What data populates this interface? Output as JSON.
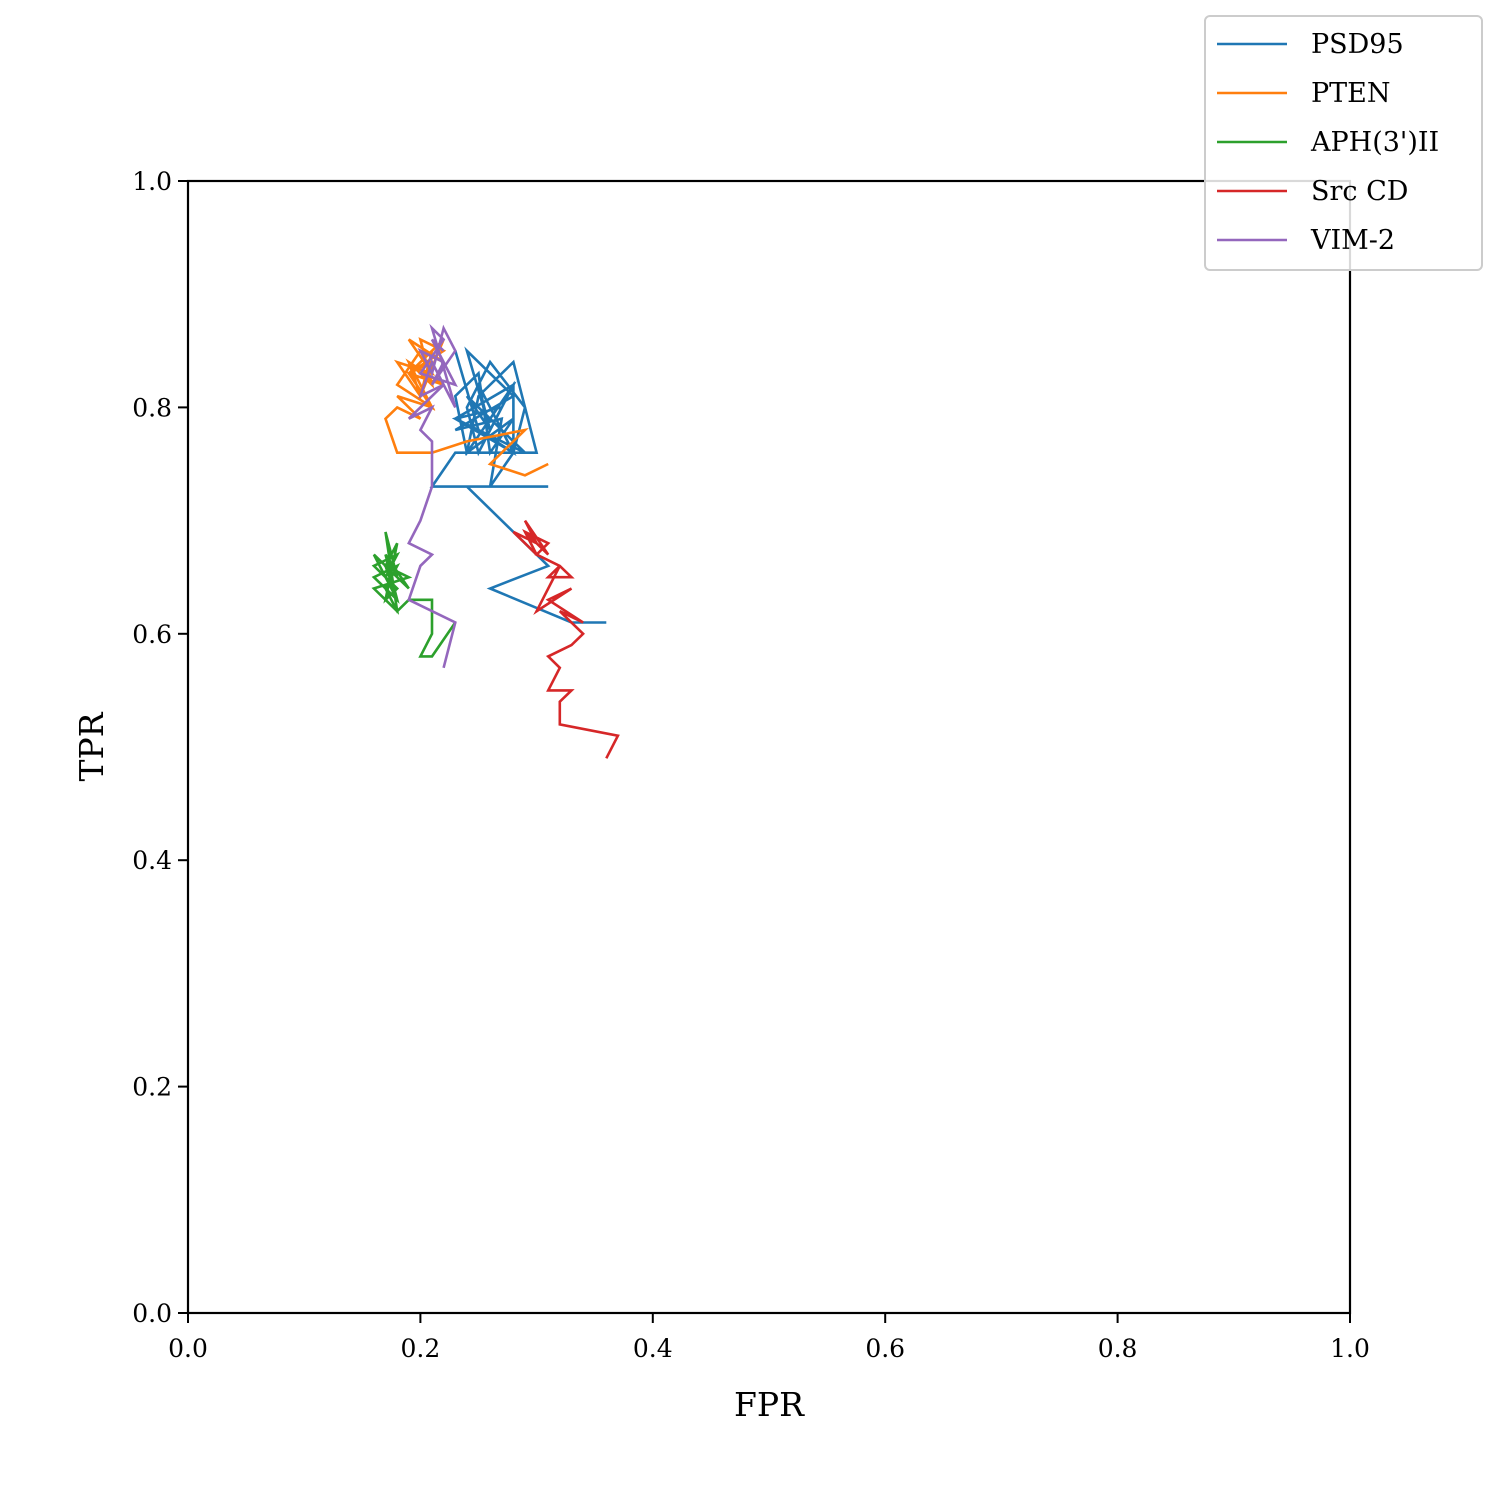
{
  "chart_data": {
    "type": "line",
    "xlabel": "FPR",
    "ylabel": "TPR",
    "xlim": [
      0.0,
      1.0
    ],
    "ylim": [
      0.0,
      1.0
    ],
    "xticks": [
      "0.0",
      "0.2",
      "0.4",
      "0.6",
      "0.8",
      "1.0"
    ],
    "yticks": [
      "0.0",
      "0.2",
      "0.4",
      "0.6",
      "0.8",
      "1.0"
    ],
    "grid": false,
    "legend_position": "top-right",
    "series": [
      {
        "name": "PSD95",
        "color": "#1f77b4",
        "x": [
          0.36,
          0.33,
          0.26,
          0.31,
          0.24,
          0.31,
          0.21,
          0.23,
          0.3,
          0.28,
          0.25,
          0.24,
          0.28,
          0.26,
          0.25,
          0.23,
          0.24,
          0.28,
          0.28,
          0.26,
          0.27,
          0.23,
          0.28,
          0.24,
          0.26,
          0.27,
          0.23,
          0.28,
          0.25,
          0.26,
          0.24,
          0.29,
          0.23,
          0.28,
          0.25,
          0.24,
          0.26,
          0.29,
          0.28,
          0.25,
          0.23
        ],
        "y": [
          0.61,
          0.61,
          0.64,
          0.66,
          0.73,
          0.73,
          0.73,
          0.76,
          0.76,
          0.84,
          0.81,
          0.76,
          0.79,
          0.76,
          0.83,
          0.81,
          0.76,
          0.82,
          0.76,
          0.73,
          0.79,
          0.78,
          0.81,
          0.85,
          0.78,
          0.8,
          0.79,
          0.76,
          0.82,
          0.78,
          0.81,
          0.76,
          0.79,
          0.82,
          0.76,
          0.8,
          0.84,
          0.8,
          0.76,
          0.78,
          0.85
        ]
      },
      {
        "name": "PTEN",
        "color": "#ff7f0e",
        "x": [
          0.31,
          0.29,
          0.26,
          0.29,
          0.24,
          0.21,
          0.18,
          0.17,
          0.18,
          0.2,
          0.18,
          0.21,
          0.19,
          0.22,
          0.19,
          0.21,
          0.18,
          0.2,
          0.22,
          0.19,
          0.21,
          0.18,
          0.2,
          0.21,
          0.19,
          0.22,
          0.2,
          0.19,
          0.21,
          0.2,
          0.22,
          0.19,
          0.21
        ],
        "y": [
          0.75,
          0.74,
          0.75,
          0.78,
          0.77,
          0.76,
          0.76,
          0.79,
          0.8,
          0.79,
          0.81,
          0.8,
          0.83,
          0.82,
          0.84,
          0.8,
          0.82,
          0.85,
          0.84,
          0.86,
          0.83,
          0.84,
          0.81,
          0.85,
          0.83,
          0.86,
          0.81,
          0.84,
          0.82,
          0.86,
          0.85,
          0.83,
          0.84
        ]
      },
      {
        "name": "APH(3')II",
        "color": "#2ca02c",
        "x": [
          0.23,
          0.21,
          0.2,
          0.21,
          0.21,
          0.19,
          0.18,
          0.17,
          0.18,
          0.16,
          0.18,
          0.17,
          0.19,
          0.17,
          0.18,
          0.16,
          0.18,
          0.17,
          0.18,
          0.16,
          0.19,
          0.17,
          0.18,
          0.17,
          0.18,
          0.16,
          0.18,
          0.17
        ],
        "y": [
          0.61,
          0.58,
          0.58,
          0.6,
          0.63,
          0.63,
          0.62,
          0.64,
          0.66,
          0.65,
          0.63,
          0.67,
          0.64,
          0.66,
          0.63,
          0.67,
          0.65,
          0.69,
          0.62,
          0.64,
          0.65,
          0.66,
          0.68,
          0.63,
          0.64,
          0.66,
          0.67,
          0.65
        ]
      },
      {
        "name": "Src CD",
        "color": "#d62728",
        "x": [
          0.36,
          0.37,
          0.32,
          0.32,
          0.33,
          0.31,
          0.32,
          0.31,
          0.33,
          0.34,
          0.32,
          0.34,
          0.31,
          0.33,
          0.3,
          0.32,
          0.31,
          0.33,
          0.32,
          0.3,
          0.31,
          0.29,
          0.3,
          0.28,
          0.3,
          0.29,
          0.31,
          0.29
        ],
        "y": [
          0.49,
          0.51,
          0.52,
          0.54,
          0.55,
          0.55,
          0.57,
          0.58,
          0.59,
          0.6,
          0.62,
          0.61,
          0.63,
          0.64,
          0.62,
          0.66,
          0.65,
          0.65,
          0.66,
          0.67,
          0.68,
          0.69,
          0.67,
          0.69,
          0.68,
          0.7,
          0.67,
          0.69
        ]
      },
      {
        "name": "VIM-2",
        "color": "#9467bd",
        "x": [
          0.22,
          0.23,
          0.19,
          0.2,
          0.21,
          0.19,
          0.2,
          0.21,
          0.21,
          0.2,
          0.21,
          0.19,
          0.22,
          0.2,
          0.21,
          0.23,
          0.21,
          0.22,
          0.2,
          0.23,
          0.21,
          0.22,
          0.2,
          0.21,
          0.22,
          0.23,
          0.21,
          0.22,
          0.21,
          0.22
        ],
        "y": [
          0.57,
          0.61,
          0.63,
          0.66,
          0.67,
          0.68,
          0.7,
          0.73,
          0.77,
          0.78,
          0.8,
          0.79,
          0.82,
          0.81,
          0.84,
          0.8,
          0.87,
          0.86,
          0.83,
          0.82,
          0.86,
          0.84,
          0.85,
          0.83,
          0.87,
          0.85,
          0.82,
          0.84,
          0.86,
          0.85
        ]
      }
    ]
  }
}
